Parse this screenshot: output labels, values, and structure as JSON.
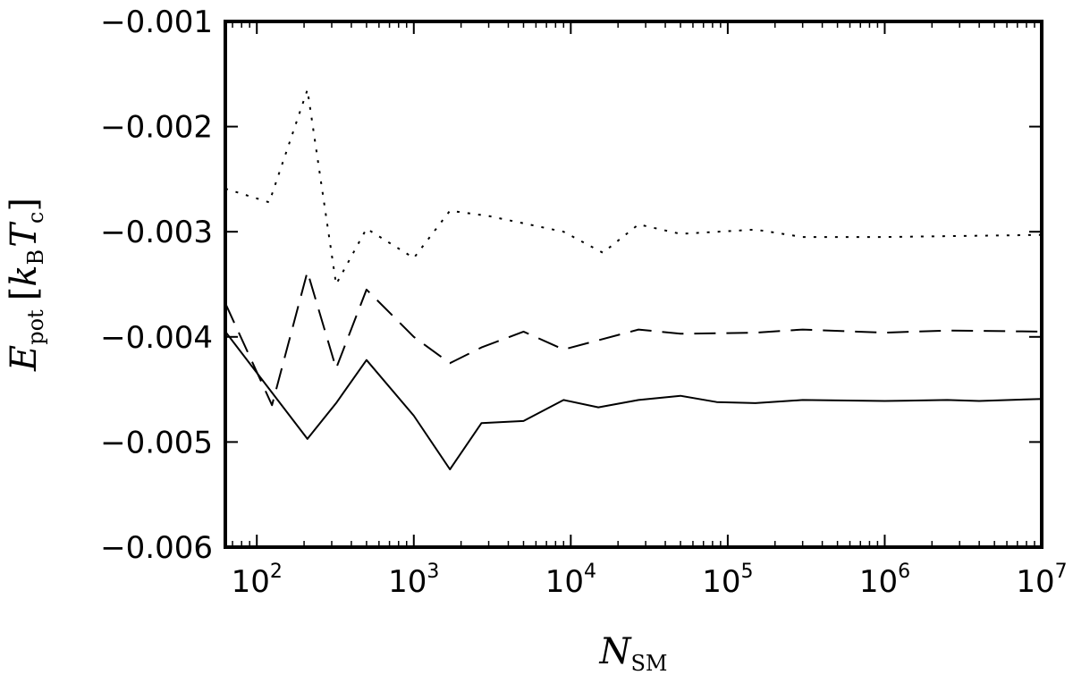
{
  "chart_data": {
    "type": "line",
    "title": "",
    "xlabel": {
      "main": "N",
      "sub": "SM"
    },
    "ylabel": {
      "main": "E",
      "sub": "pot",
      "unit_open": "[",
      "unit_k": "k",
      "unit_k_sub": "B",
      "unit_T": "T",
      "unit_T_sub": "c",
      "unit_close": "]"
    },
    "xscale": "log",
    "xlim": [
      63,
      10000000
    ],
    "ylim": [
      -0.006,
      -0.001
    ],
    "grid": false,
    "legend": "none",
    "x_ticks": [
      {
        "value": 100,
        "base": "10",
        "exp": "2"
      },
      {
        "value": 1000,
        "base": "10",
        "exp": "3"
      },
      {
        "value": 10000,
        "base": "10",
        "exp": "4"
      },
      {
        "value": 100000,
        "base": "10",
        "exp": "5"
      },
      {
        "value": 1000000,
        "base": "10",
        "exp": "6"
      },
      {
        "value": 10000000,
        "base": "10",
        "exp": "7"
      }
    ],
    "y_ticks": [
      {
        "value": -0.001,
        "label": "−0.001"
      },
      {
        "value": -0.002,
        "label": "−0.002"
      },
      {
        "value": -0.003,
        "label": "−0.003"
      },
      {
        "value": -0.004,
        "label": "−0.004"
      },
      {
        "value": -0.005,
        "label": "−0.005"
      },
      {
        "value": -0.006,
        "label": "−0.006"
      }
    ],
    "series": [
      {
        "style": "dotted",
        "x": [
          63,
          120,
          210,
          320,
          500,
          1000,
          1700,
          3000,
          9000,
          16000,
          27000,
          50000,
          150000,
          300000,
          1000000,
          10000000
        ],
        "y": [
          -0.00259,
          -0.00272,
          -0.00165,
          -0.0035,
          -0.00297,
          -0.00325,
          -0.0028,
          -0.00285,
          -0.003,
          -0.0032,
          -0.00293,
          -0.00302,
          -0.00298,
          -0.00305,
          -0.00305,
          -0.00303
        ]
      },
      {
        "style": "dashed",
        "x": [
          63,
          125,
          210,
          320,
          500,
          1000,
          1700,
          2700,
          5000,
          9000,
          27000,
          50000,
          150000,
          300000,
          1000000,
          2500000,
          10000000
        ],
        "y": [
          -0.00368,
          -0.00465,
          -0.00338,
          -0.0043,
          -0.00355,
          -0.004,
          -0.00425,
          -0.0041,
          -0.00395,
          -0.00412,
          -0.00393,
          -0.00397,
          -0.00396,
          -0.00393,
          -0.00396,
          -0.00394,
          -0.00395
        ]
      },
      {
        "style": "solid",
        "x": [
          63,
          210,
          320,
          500,
          1000,
          1700,
          2700,
          5000,
          9000,
          15000,
          27000,
          50000,
          85000,
          150000,
          300000,
          1000000,
          2500000,
          4000000,
          10000000
        ],
        "y": [
          -0.00395,
          -0.00497,
          -0.00463,
          -0.00422,
          -0.00475,
          -0.00526,
          -0.00482,
          -0.0048,
          -0.0046,
          -0.00467,
          -0.0046,
          -0.00456,
          -0.00462,
          -0.00463,
          -0.0046,
          -0.00461,
          -0.0046,
          -0.00461,
          -0.00459
        ]
      }
    ]
  }
}
